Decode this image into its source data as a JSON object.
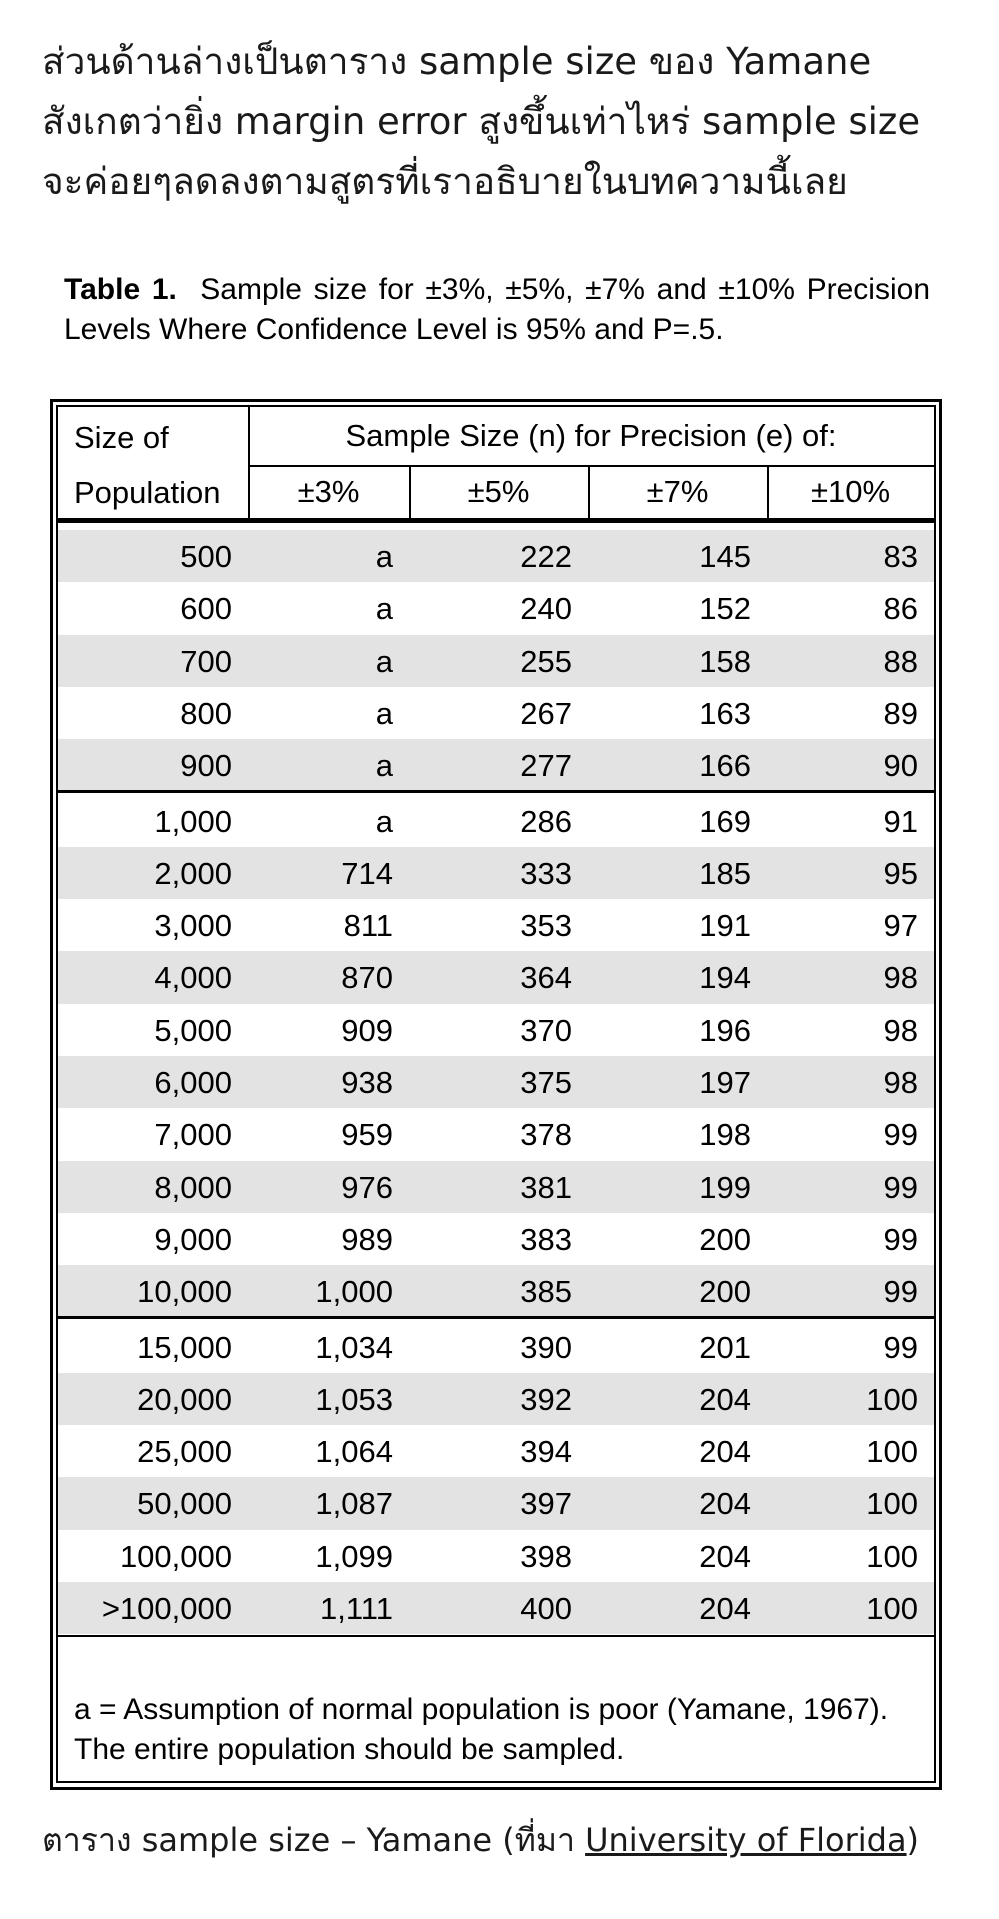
{
  "intro": {
    "lines": [
      "ส่วนด้านล่างเป็นตาราง sample size ของ Yamane",
      "สังเกตว่ายิ่ง margin error สูงขึ้นเท่าไหร่ sample size",
      "จะค่อยๆลดลงตามสูตรที่เราอธิบายในบทความนี้เลย"
    ]
  },
  "table": {
    "caption_label": "Table 1.",
    "caption_text": "Sample size for ±3%, ±5%, ±7% and ±10% Precision Levels Where Confidence Level is 95% and P=.5.",
    "header": {
      "population": "Size of Population",
      "group": "Sample Size (n) for Precision (e) of:",
      "columns": [
        "±3%",
        "±5%",
        "±7%",
        "±10%"
      ]
    },
    "row_groups": [
      [
        [
          "500",
          "a",
          "222",
          "145",
          "83"
        ],
        [
          "600",
          "a",
          "240",
          "152",
          "86"
        ],
        [
          "700",
          "a",
          "255",
          "158",
          "88"
        ],
        [
          "800",
          "a",
          "267",
          "163",
          "89"
        ],
        [
          "900",
          "a",
          "277",
          "166",
          "90"
        ]
      ],
      [
        [
          "1,000",
          "a",
          "286",
          "169",
          "91"
        ],
        [
          "2,000",
          "714",
          "333",
          "185",
          "95"
        ],
        [
          "3,000",
          "811",
          "353",
          "191",
          "97"
        ],
        [
          "4,000",
          "870",
          "364",
          "194",
          "98"
        ],
        [
          "5,000",
          "909",
          "370",
          "196",
          "98"
        ],
        [
          "6,000",
          "938",
          "375",
          "197",
          "98"
        ],
        [
          "7,000",
          "959",
          "378",
          "198",
          "99"
        ],
        [
          "8,000",
          "976",
          "381",
          "199",
          "99"
        ],
        [
          "9,000",
          "989",
          "383",
          "200",
          "99"
        ],
        [
          "10,000",
          "1,000",
          "385",
          "200",
          "99"
        ]
      ],
      [
        [
          "15,000",
          "1,034",
          "390",
          "201",
          "99"
        ],
        [
          "20,000",
          "1,053",
          "392",
          "204",
          "100"
        ],
        [
          "25,000",
          "1,064",
          "394",
          "204",
          "100"
        ],
        [
          "50,000",
          "1,087",
          "397",
          "204",
          "100"
        ],
        [
          "100,000",
          "1,099",
          "398",
          "204",
          "100"
        ],
        [
          ">100,000",
          "1,111",
          "400",
          "204",
          "100"
        ]
      ]
    ],
    "footnote": "a = Assumption of normal population is poor (Yamane, 1967).  The entire population should be sampled."
  },
  "source": {
    "prefix": "ตาราง sample size – Yamane (ที่มา ",
    "link": "University of Florida",
    "suffix": ")"
  }
}
